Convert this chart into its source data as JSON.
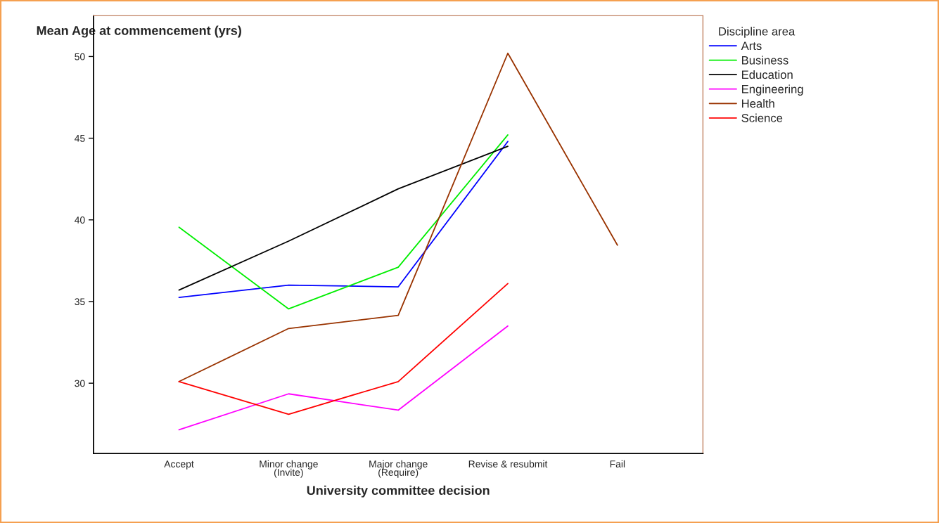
{
  "chart_data": {
    "type": "line",
    "xlabel": "University committee decision",
    "ylabel": "Mean Age at commencement (yrs)",
    "legend_title": "Discipline area",
    "categories": [
      "Accept",
      "Minor change\n(Invite)",
      "Major change\n(Require)",
      "Revise & resubmit",
      "Fail"
    ],
    "ylim": [
      25.7,
      52.5
    ],
    "yticks": [
      30,
      35,
      40,
      45,
      50
    ],
    "grid": false,
    "legend": "top right",
    "series": [
      {
        "name": "Arts",
        "color": "#0000ff",
        "values": [
          35.25,
          36.0,
          35.9,
          44.8,
          null
        ]
      },
      {
        "name": "Business",
        "color": "#00ee00",
        "values": [
          39.55,
          34.55,
          37.1,
          45.2,
          null
        ]
      },
      {
        "name": "Education",
        "color": "#000000",
        "values": [
          35.7,
          38.7,
          41.9,
          44.5,
          null
        ]
      },
      {
        "name": "Engineering",
        "color": "#ff00ff",
        "values": [
          27.15,
          29.35,
          28.35,
          33.5,
          null
        ]
      },
      {
        "name": "Health",
        "color": "#993300",
        "values": [
          30.1,
          33.35,
          34.15,
          50.2,
          38.45
        ]
      },
      {
        "name": "Science",
        "color": "#ff0000",
        "values": [
          30.1,
          28.1,
          30.1,
          36.1,
          null
        ]
      }
    ]
  }
}
